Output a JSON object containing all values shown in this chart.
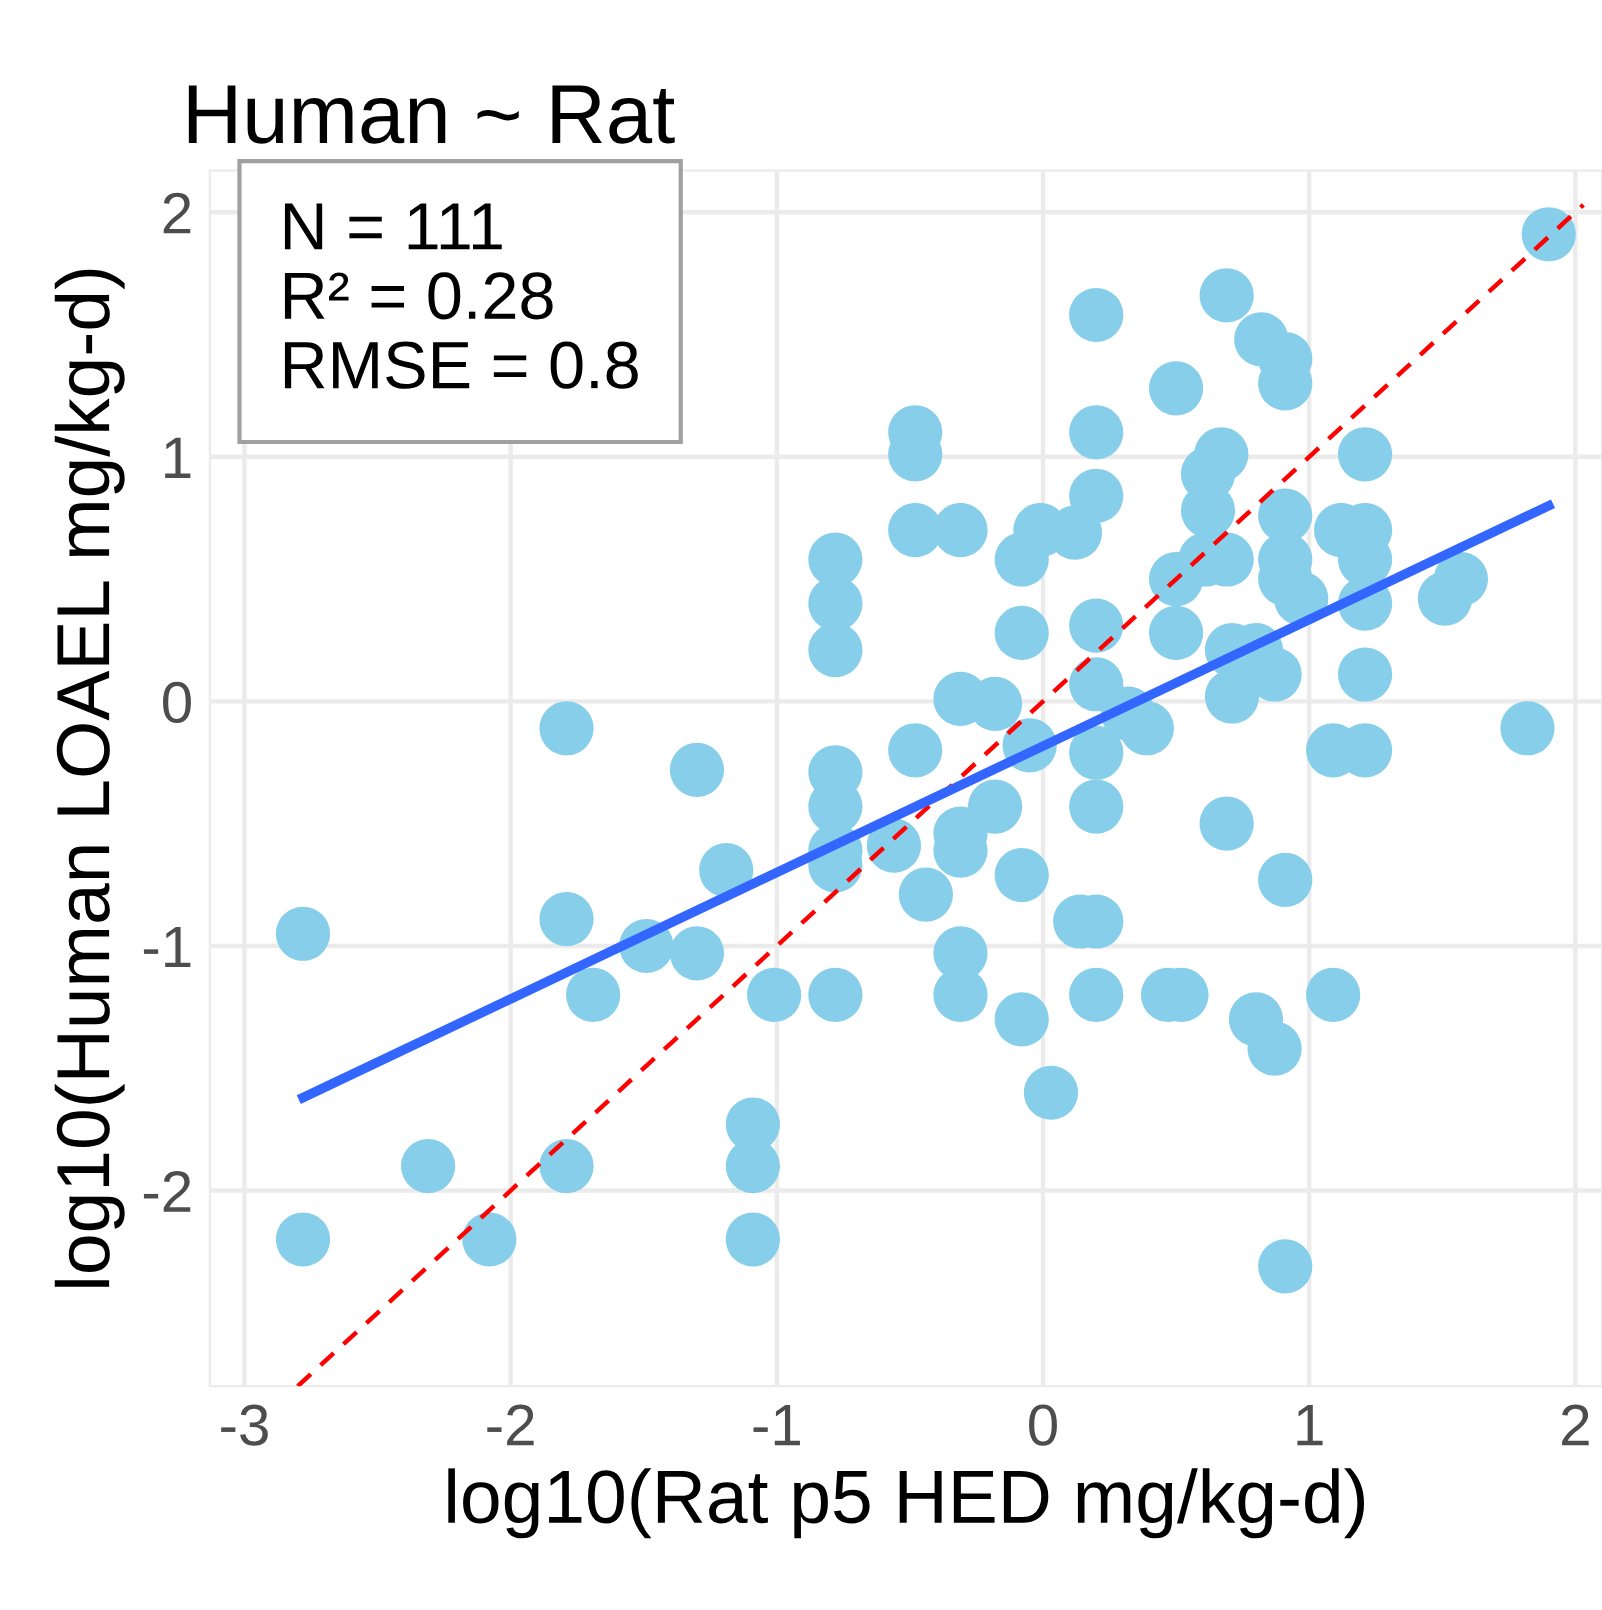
{
  "chart_data": {
    "type": "scatter",
    "title": "Human ~ Rat",
    "xlabel": "log10(Rat p5 HED mg/kg-d)",
    "ylabel": "log10(Human LOAEL mg/kg-d)",
    "xlim": [
      -3.13,
      2.1
    ],
    "ylim": [
      -2.8,
      2.17
    ],
    "xticks": [
      -3,
      -2,
      -1,
      0,
      1,
      2
    ],
    "yticks": [
      -2,
      -1,
      0,
      1,
      2
    ],
    "grid": true,
    "marker": "circle",
    "annotations": [
      "N = 111",
      "R² = 0.28",
      "RMSE = 0.8"
    ],
    "series": [
      {
        "color": "#87ceeb",
        "x": [
          0.2,
          0.69,
          0.82,
          0.91,
          0.91,
          0.5,
          -0.48,
          -0.48,
          0.2,
          1.21,
          0.67,
          0.62,
          0.62,
          0.2,
          -0.48,
          -0.31,
          -0.01,
          0.12,
          -0.08,
          0.91,
          0.91,
          0.91,
          1.12,
          1.21,
          1.21,
          0.69,
          0.61,
          0.5,
          1.57,
          1.51,
          1.21,
          0.97,
          -0.08,
          0.2,
          0.5,
          -0.31,
          -0.18,
          0.71,
          0.8,
          0.87,
          0.71,
          0.2,
          0.32,
          0.39,
          1.21,
          -0.48,
          -0.05,
          0.2,
          1.09,
          1.21,
          1.82,
          1.9,
          -0.78,
          -0.78,
          -0.78,
          -1.79,
          -1.3,
          -0.78,
          -0.78,
          -0.78,
          -0.78,
          -0.56,
          -2.78,
          -1.79,
          -1.19,
          -1.49,
          -1.3,
          -1.69,
          -1.01,
          -0.78,
          -1.09,
          -1.09,
          -1.09,
          -2.31,
          -1.79,
          -2.78,
          -2.08,
          -0.18,
          -0.31,
          -0.31,
          -0.44,
          0.2,
          -0.08,
          0.69,
          0.91,
          0.14,
          0.2,
          -0.31,
          -0.31,
          -0.08,
          0.2,
          0.47,
          0.52,
          0.8,
          0.87,
          1.09,
          0.03,
          0.91
        ],
        "values": [
          1.58,
          1.66,
          1.48,
          1.4,
          1.3,
          1.28,
          1.1,
          1.01,
          1.1,
          1.01,
          1.01,
          0.93,
          0.78,
          0.84,
          0.7,
          0.7,
          0.7,
          0.69,
          0.58,
          0.76,
          0.58,
          0.5,
          0.7,
          0.7,
          0.58,
          0.58,
          0.58,
          0.5,
          0.5,
          0.42,
          0.4,
          0.42,
          0.28,
          0.31,
          0.28,
          0.01,
          -0.01,
          0.21,
          0.21,
          0.11,
          0.02,
          0.07,
          -0.05,
          -0.11,
          0.11,
          -0.2,
          -0.18,
          -0.21,
          -0.2,
          -0.2,
          -0.11,
          1.91,
          0.58,
          0.4,
          0.21,
          -0.11,
          -0.28,
          -0.29,
          -0.43,
          -0.61,
          -0.67,
          -0.59,
          -0.95,
          -0.89,
          -0.69,
          -1.0,
          -1.03,
          -1.2,
          -1.2,
          -1.2,
          -1.73,
          -1.9,
          -2.2,
          -1.9,
          -1.9,
          -2.2,
          -2.2,
          -0.43,
          -0.54,
          -0.61,
          -0.79,
          -0.43,
          -0.71,
          -0.5,
          -0.73,
          -0.9,
          -0.9,
          -1.03,
          -1.2,
          -1.3,
          -1.2,
          -1.2,
          -1.2,
          -1.3,
          -1.42,
          -1.2,
          -1.6,
          -2.31
        ]
      },
      {
        "type": "line",
        "color": "#ff0000",
        "line_style": "dashed",
        "marker": "none",
        "x": [
          -2.8,
          2.03
        ],
        "values": [
          -2.8,
          2.03
        ]
      },
      {
        "type": "line",
        "color": "#3366ff",
        "line_style": "solid",
        "marker": "none",
        "x": [
          -2.78,
          1.9
        ],
        "values": [
          -1.62,
          0.8
        ]
      }
    ]
  }
}
